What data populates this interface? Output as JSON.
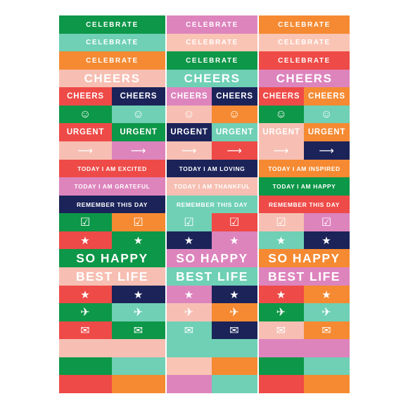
{
  "colors": {
    "green": "#0d9748",
    "mint": "#6fd0b5",
    "pink": "#dd84bd",
    "peach": "#fac4b4",
    "orange": "#f58a32",
    "red": "#ee4a47",
    "navy": "#1b2359",
    "salmon": "#f7bfb3"
  },
  "labels": {
    "celebrate": "CELEBRATE",
    "cheers": "CHEERS",
    "urgent": "URGENT",
    "excited": "TODAY I AM EXCITED",
    "loving": "TODAY I AM LOVING",
    "inspired": "TODAY I AM INSPIRED",
    "grateful": "TODAY I AM GRATEFUL",
    "thankful": "TODAY I AM THANKFUL",
    "happy": "TODAY I AM HAPPY",
    "remember": "REMEMBER THIS DAY",
    "so_happy": "SO HAPPY",
    "best_life": "BEST LIFE"
  },
  "icons": {
    "smile": "smile-icon",
    "arrow": "arrow-right-icon",
    "checkbox": "checkbox-icon",
    "star": "star-icon",
    "plane": "airplane-icon",
    "envelope": "envelope-icon"
  },
  "glyphs": {
    "smile": "☺",
    "arrow": "⟶",
    "checkbox": "☑",
    "star": "★",
    "plane": "✈",
    "envelope": "✉"
  },
  "rows": [
    {
      "type": "label",
      "key": "celebrate",
      "size": "t-sm",
      "cells": [
        [
          "green"
        ],
        [
          "pink"
        ],
        [
          "orange"
        ]
      ]
    },
    {
      "type": "label",
      "key": "celebrate",
      "size": "t-sm",
      "cells": [
        [
          "mint"
        ],
        [
          "peach"
        ],
        [
          "peach"
        ]
      ]
    },
    {
      "type": "label",
      "key": "celebrate",
      "size": "t-sm",
      "cells": [
        [
          "orange"
        ],
        [
          "green"
        ],
        [
          "red"
        ]
      ]
    },
    {
      "type": "label",
      "key": "cheers",
      "size": "t-big",
      "cells": [
        [
          "salmon"
        ],
        [
          "mint"
        ],
        [
          "pink"
        ]
      ]
    },
    {
      "type": "split",
      "key": "cheers",
      "size": "t-md",
      "cells": [
        [
          "red",
          "navy"
        ],
        [
          "pink",
          "navy"
        ],
        [
          "red",
          "orange"
        ]
      ]
    },
    {
      "type": "split-icon",
      "key": "smile",
      "size": "t-ico",
      "cells": [
        [
          "green",
          "mint"
        ],
        [
          "salmon",
          "orange"
        ],
        [
          "green",
          "mint"
        ]
      ]
    },
    {
      "type": "split",
      "key": "urgent",
      "size": "t-md",
      "cells": [
        [
          "red",
          "green"
        ],
        [
          "navy",
          "mint"
        ],
        [
          "salmon",
          "orange"
        ]
      ]
    },
    {
      "type": "split-icon",
      "key": "arrow",
      "size": "t-sym",
      "cells": [
        [
          "salmon",
          "pink"
        ],
        [
          "salmon",
          "red"
        ],
        [
          "salmon",
          "navy"
        ]
      ]
    },
    {
      "type": "single3",
      "keys": [
        "excited",
        "loving",
        "inspired"
      ],
      "size": "t-xs",
      "cells": [
        [
          "red"
        ],
        [
          "navy"
        ],
        [
          "orange"
        ]
      ]
    },
    {
      "type": "single3",
      "keys": [
        "grateful",
        "thankful",
        "happy"
      ],
      "size": "t-xs",
      "cells": [
        [
          "pink"
        ],
        [
          "salmon"
        ],
        [
          "green"
        ]
      ]
    },
    {
      "type": "label",
      "key": "remember",
      "size": "t-xs",
      "cells": [
        [
          "navy"
        ],
        [
          "mint"
        ],
        [
          "red"
        ]
      ]
    },
    {
      "type": "split-icon",
      "key": "checkbox",
      "size": "t-ico",
      "cells": [
        [
          "green",
          "orange"
        ],
        [
          "mint",
          "red"
        ],
        [
          "salmon",
          "pink"
        ]
      ]
    },
    {
      "type": "split-icon",
      "key": "star",
      "size": "t-sym",
      "cells": [
        [
          "red",
          "green"
        ],
        [
          "navy",
          "pink"
        ],
        [
          "mint",
          "navy"
        ]
      ]
    },
    {
      "type": "label",
      "key": "so_happy",
      "size": "t-xl",
      "cells": [
        [
          "green"
        ],
        [
          "pink"
        ],
        [
          "orange"
        ]
      ]
    },
    {
      "type": "label",
      "key": "best_life",
      "size": "t-xl",
      "cells": [
        [
          "salmon"
        ],
        [
          "mint"
        ],
        [
          "pink"
        ]
      ]
    },
    {
      "type": "split-icon",
      "key": "star",
      "size": "t-sym",
      "cells": [
        [
          "red",
          "navy"
        ],
        [
          "pink",
          "navy"
        ],
        [
          "red",
          "orange"
        ]
      ]
    },
    {
      "type": "split-icon",
      "key": "plane",
      "size": "t-ico",
      "cells": [
        [
          "green",
          "mint"
        ],
        [
          "salmon",
          "orange"
        ],
        [
          "green",
          "mint"
        ]
      ]
    },
    {
      "type": "split-icon",
      "key": "envelope",
      "size": "t-ico",
      "cells": [
        [
          "red",
          "green"
        ],
        [
          "mint",
          "navy"
        ],
        [
          "salmon",
          "orange"
        ]
      ]
    },
    {
      "type": "blank",
      "cells": [
        [
          "salmon"
        ],
        [
          "mint"
        ],
        [
          "pink"
        ]
      ]
    },
    {
      "type": "blank",
      "cells": [
        [
          "green",
          "mint"
        ],
        [
          "peach",
          "orange"
        ],
        [
          "green",
          "mint"
        ]
      ]
    },
    {
      "type": "blank",
      "cells": [
        [
          "red",
          "orange"
        ],
        [
          "pink",
          "mint"
        ],
        [
          "red",
          "orange"
        ]
      ]
    }
  ]
}
